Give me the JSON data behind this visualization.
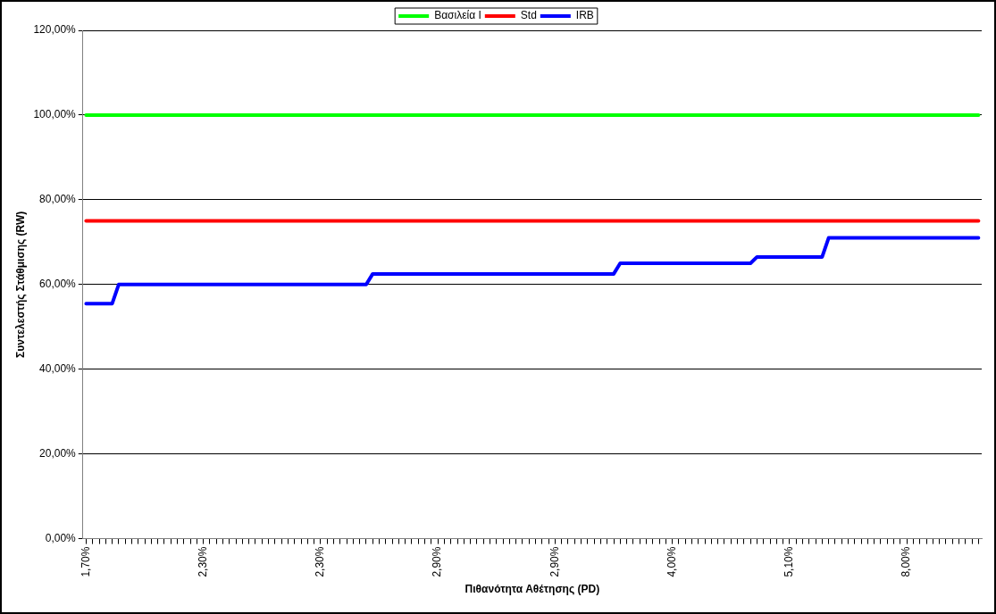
{
  "chart_data": {
    "type": "line",
    "xlabel": "Πιθανότητα Αθέτησης (PD)",
    "ylabel": "Συντελεστής Στάθμισης (RW)",
    "categories": [
      "1,70%",
      null,
      null,
      null,
      null,
      null,
      null,
      null,
      null,
      null,
      null,
      null,
      null,
      null,
      null,
      null,
      null,
      null,
      "2,30%",
      null,
      null,
      null,
      null,
      null,
      null,
      null,
      null,
      null,
      null,
      null,
      null,
      null,
      null,
      null,
      null,
      null,
      "2,30%",
      null,
      null,
      null,
      null,
      null,
      null,
      null,
      null,
      null,
      null,
      null,
      null,
      null,
      null,
      null,
      null,
      null,
      "2,90%",
      null,
      null,
      null,
      null,
      null,
      null,
      null,
      null,
      null,
      null,
      null,
      null,
      null,
      null,
      null,
      null,
      null,
      "2,90%",
      null,
      null,
      null,
      null,
      null,
      null,
      null,
      null,
      null,
      null,
      null,
      null,
      null,
      null,
      null,
      null,
      null,
      "4,00%",
      null,
      null,
      null,
      null,
      null,
      null,
      null,
      null,
      null,
      null,
      null,
      null,
      null,
      null,
      null,
      null,
      null,
      "5,10%",
      null,
      null,
      null,
      null,
      null,
      null,
      null,
      null,
      null,
      null,
      null,
      null,
      null,
      null,
      null,
      null,
      null,
      "8,00%",
      null,
      null,
      null,
      null,
      null,
      null,
      null,
      null,
      null,
      null,
      null
    ],
    "series": [
      {
        "name": "Βασιλεία I",
        "color": "#00ff00",
        "values": [
          100,
          100,
          100,
          100,
          100,
          100,
          100,
          100,
          100,
          100,
          100,
          100,
          100,
          100,
          100,
          100,
          100,
          100,
          100,
          100,
          100,
          100,
          100,
          100,
          100,
          100,
          100,
          100,
          100,
          100,
          100,
          100,
          100,
          100,
          100,
          100,
          100,
          100,
          100,
          100,
          100,
          100,
          100,
          100,
          100,
          100,
          100,
          100,
          100,
          100,
          100,
          100,
          100,
          100,
          100,
          100,
          100,
          100,
          100,
          100,
          100,
          100,
          100,
          100,
          100,
          100,
          100,
          100,
          100,
          100,
          100,
          100,
          100,
          100,
          100,
          100,
          100,
          100,
          100,
          100,
          100,
          100,
          100,
          100,
          100,
          100,
          100,
          100,
          100,
          100,
          100,
          100,
          100,
          100,
          100,
          100,
          100,
          100,
          100,
          100,
          100,
          100,
          100,
          100,
          100,
          100,
          100,
          100,
          100,
          100,
          100,
          100,
          100,
          100,
          100,
          100,
          100,
          100,
          100,
          100,
          100,
          100,
          100,
          100,
          100,
          100,
          100,
          100,
          100,
          100,
          100,
          100,
          100,
          100,
          100,
          100,
          100,
          100
        ]
      },
      {
        "name": "Std",
        "color": "#ff0000",
        "values": [
          75,
          75,
          75,
          75,
          75,
          75,
          75,
          75,
          75,
          75,
          75,
          75,
          75,
          75,
          75,
          75,
          75,
          75,
          75,
          75,
          75,
          75,
          75,
          75,
          75,
          75,
          75,
          75,
          75,
          75,
          75,
          75,
          75,
          75,
          75,
          75,
          75,
          75,
          75,
          75,
          75,
          75,
          75,
          75,
          75,
          75,
          75,
          75,
          75,
          75,
          75,
          75,
          75,
          75,
          75,
          75,
          75,
          75,
          75,
          75,
          75,
          75,
          75,
          75,
          75,
          75,
          75,
          75,
          75,
          75,
          75,
          75,
          75,
          75,
          75,
          75,
          75,
          75,
          75,
          75,
          75,
          75,
          75,
          75,
          75,
          75,
          75,
          75,
          75,
          75,
          75,
          75,
          75,
          75,
          75,
          75,
          75,
          75,
          75,
          75,
          75,
          75,
          75,
          75,
          75,
          75,
          75,
          75,
          75,
          75,
          75,
          75,
          75,
          75,
          75,
          75,
          75,
          75,
          75,
          75,
          75,
          75,
          75,
          75,
          75,
          75,
          75,
          75,
          75,
          75,
          75,
          75,
          75,
          75,
          75,
          75,
          75,
          75
        ]
      },
      {
        "name": "IRB",
        "color": "#0000ff",
        "values": [
          55.5,
          55.5,
          55.5,
          55.5,
          55.5,
          60,
          60,
          60,
          60,
          60,
          60,
          60,
          60,
          60,
          60,
          60,
          60,
          60,
          60,
          60,
          60,
          60,
          60,
          60,
          60,
          60,
          60,
          60,
          60,
          60,
          60,
          60,
          60,
          60,
          60,
          60,
          60,
          60,
          60,
          60,
          60,
          60,
          60,
          60,
          62.5,
          62.5,
          62.5,
          62.5,
          62.5,
          62.5,
          62.5,
          62.5,
          62.5,
          62.5,
          62.5,
          62.5,
          62.5,
          62.5,
          62.5,
          62.5,
          62.5,
          62.5,
          62.5,
          62.5,
          62.5,
          62.5,
          62.5,
          62.5,
          62.5,
          62.5,
          62.5,
          62.5,
          62.5,
          62.5,
          62.5,
          62.5,
          62.5,
          62.5,
          62.5,
          62.5,
          62.5,
          62.5,
          65,
          65,
          65,
          65,
          65,
          65,
          65,
          65,
          65,
          65,
          65,
          65,
          65,
          65,
          65,
          65,
          65,
          65,
          65,
          65,
          65,
          66.5,
          66.5,
          66.5,
          66.5,
          66.5,
          66.5,
          66.5,
          66.5,
          66.5,
          66.5,
          66.5,
          71,
          71,
          71,
          71,
          71,
          71,
          71,
          71,
          71,
          71,
          71,
          71,
          71,
          71,
          71,
          71,
          71,
          71,
          71,
          71,
          71,
          71,
          71,
          71
        ]
      }
    ],
    "ylim": [
      0,
      120
    ],
    "yticks": [
      {
        "value": 0,
        "label": "0,00%"
      },
      {
        "value": 20,
        "label": "20,00%"
      },
      {
        "value": 40,
        "label": "40,00%"
      },
      {
        "value": 60,
        "label": "60,00%"
      },
      {
        "value": 80,
        "label": "80,00%"
      },
      {
        "value": 100,
        "label": "100,00%"
      },
      {
        "value": 120,
        "label": "120,00%"
      }
    ],
    "grid": "y",
    "legend": "top",
    "marker": "none",
    "line_style": "solid"
  }
}
